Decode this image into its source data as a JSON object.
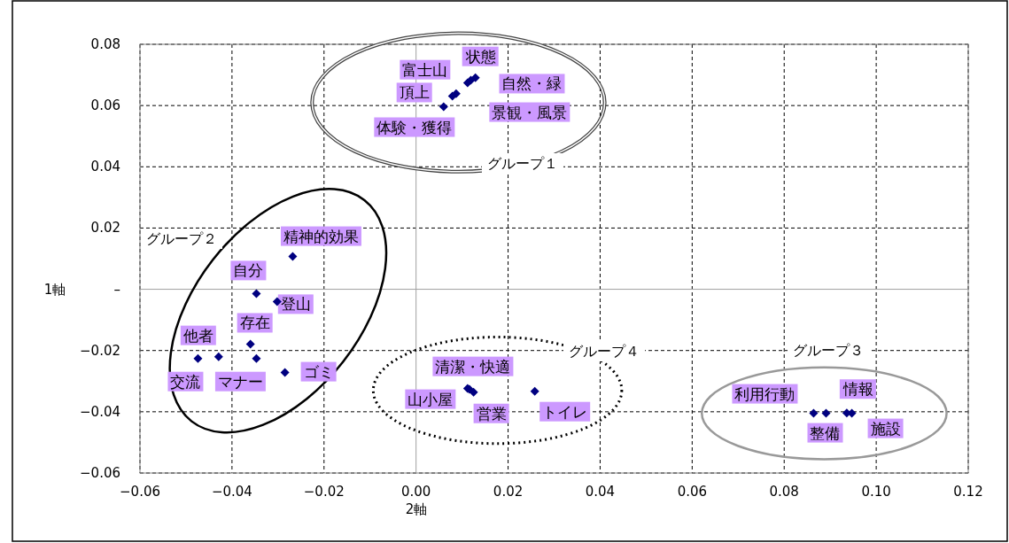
{
  "chart_data": {
    "type": "scatter",
    "xlabel": "2軸",
    "ylabel": "1軸",
    "x": [
      0.006,
      0.0079,
      0.0087,
      0.0112,
      0.0119,
      0.0129,
      -0.0268,
      -0.0347,
      -0.0302,
      -0.036,
      -0.0429,
      -0.0474,
      -0.0347,
      -0.0285,
      0.0116,
      0.0112,
      0.0125,
      0.0258,
      0.0864,
      0.0891,
      0.0936,
      0.0947
    ],
    "values": [
      0.0596,
      0.0631,
      0.0639,
      0.0674,
      0.0683,
      0.0691,
      0.0107,
      -0.0014,
      -0.004,
      -0.0179,
      -0.022,
      -0.0226,
      -0.0226,
      -0.0272,
      -0.0327,
      -0.0324,
      -0.0336,
      -0.0333,
      -0.0405,
      -0.0405,
      -0.0404,
      -0.0405
    ],
    "value_labels": [
      "体験・獲得",
      "頂上",
      "富士山",
      "景観・風景",
      "自然・緑",
      "状態",
      "精神的効果",
      "自分",
      "登山",
      "存在",
      "他者",
      "交流",
      "マナー",
      "ゴミ",
      "清潔・快適",
      "山小屋",
      "営業",
      "トイレ",
      "利用行動",
      "整備",
      "情報",
      "施設"
    ],
    "color": "#000080",
    "marker": "diamond",
    "xlim": [
      -0.06,
      0.12
    ],
    "ylim": [
      -0.06,
      0.08
    ],
    "xticks": [
      {
        "value": -0.06,
        "label": "−0.06"
      },
      {
        "value": -0.04,
        "label": "−0.04"
      },
      {
        "value": -0.02,
        "label": "−0.02"
      },
      {
        "value": 0,
        "label": "0.00"
      },
      {
        "value": 0.02,
        "label": "0.02"
      },
      {
        "value": 0.04,
        "label": "0.04"
      },
      {
        "value": 0.06,
        "label": "0.06"
      },
      {
        "value": 0.08,
        "label": "0.08"
      },
      {
        "value": 0.1,
        "label": "0.10"
      },
      {
        "value": 0.12,
        "label": "0.12"
      }
    ],
    "yticks": [
      {
        "value": -0.06,
        "label": "−0.06"
      },
      {
        "value": -0.04,
        "label": "−0.04"
      },
      {
        "value": -0.02,
        "label": "−0.02"
      },
      {
        "value": 0,
        "label": "–"
      },
      {
        "value": 0.02,
        "label": "0.02"
      },
      {
        "value": 0.04,
        "label": "0.04"
      },
      {
        "value": 0.06,
        "label": "0.06"
      },
      {
        "value": 0.08,
        "label": "0.08"
      }
    ],
    "grid": true,
    "annotations": [
      "グループ１",
      "グループ２",
      "グループ３",
      "グループ４"
    ]
  }
}
